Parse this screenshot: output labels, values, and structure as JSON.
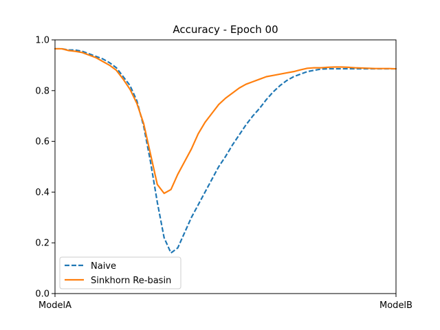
{
  "chart_data": {
    "type": "line",
    "title": "Accuracy - Epoch 00",
    "xlabel": "",
    "ylabel": "",
    "xlim": [
      0,
      1
    ],
    "ylim": [
      0.0,
      1.0
    ],
    "x_tick_labels": [
      {
        "x": 0,
        "label": "ModelA"
      },
      {
        "x": 1,
        "label": "ModelB"
      }
    ],
    "y_ticks": [
      0.0,
      0.2,
      0.4,
      0.6,
      0.8,
      1.0
    ],
    "y_tick_labels": [
      "0.0",
      "0.2",
      "0.4",
      "0.6",
      "0.8",
      "1.0"
    ],
    "grid": false,
    "legend_position": "lower-left",
    "x": [
      0.0,
      0.02,
      0.04,
      0.06,
      0.08,
      0.1,
      0.12,
      0.14,
      0.16,
      0.18,
      0.2,
      0.22,
      0.24,
      0.26,
      0.28,
      0.3,
      0.32,
      0.34,
      0.36,
      0.38,
      0.4,
      0.42,
      0.44,
      0.46,
      0.48,
      0.5,
      0.52,
      0.54,
      0.56,
      0.58,
      0.6,
      0.62,
      0.64,
      0.66,
      0.68,
      0.7,
      0.72,
      0.74,
      0.76,
      0.78,
      0.8,
      0.82,
      0.84,
      0.86,
      0.88,
      0.9,
      0.92,
      0.94,
      0.96,
      0.98,
      1.0
    ],
    "series": [
      {
        "name": "Naive",
        "color": "#1f77b4",
        "dash": "dashed",
        "values": [
          0.965,
          0.965,
          0.96,
          0.96,
          0.955,
          0.945,
          0.935,
          0.925,
          0.91,
          0.89,
          0.855,
          0.82,
          0.76,
          0.66,
          0.52,
          0.36,
          0.22,
          0.16,
          0.18,
          0.24,
          0.3,
          0.35,
          0.4,
          0.45,
          0.5,
          0.54,
          0.585,
          0.625,
          0.665,
          0.7,
          0.73,
          0.765,
          0.795,
          0.82,
          0.84,
          0.855,
          0.865,
          0.875,
          0.88,
          0.885,
          0.886,
          0.886,
          0.886,
          0.886,
          0.886,
          0.886,
          0.886,
          0.886,
          0.886,
          0.886,
          0.886
        ]
      },
      {
        "name": "Sinkhorn Re-basin",
        "color": "#ff7f0e",
        "dash": "solid",
        "values": [
          0.965,
          0.965,
          0.958,
          0.955,
          0.95,
          0.94,
          0.93,
          0.915,
          0.9,
          0.88,
          0.845,
          0.805,
          0.75,
          0.67,
          0.55,
          0.43,
          0.395,
          0.41,
          0.47,
          0.52,
          0.57,
          0.63,
          0.675,
          0.71,
          0.745,
          0.77,
          0.79,
          0.81,
          0.825,
          0.835,
          0.845,
          0.855,
          0.86,
          0.865,
          0.87,
          0.875,
          0.882,
          0.888,
          0.89,
          0.89,
          0.892,
          0.893,
          0.893,
          0.892,
          0.89,
          0.889,
          0.888,
          0.887,
          0.887,
          0.887,
          0.886
        ]
      }
    ]
  }
}
